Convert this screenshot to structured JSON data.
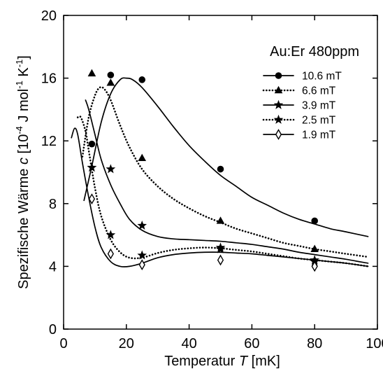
{
  "chart_data": {
    "type": "scatter",
    "title": "Au:Er 480ppm",
    "xlabel": {
      "main": "Temperatur ",
      "italic": "T",
      "unit": " [mK]"
    },
    "ylabel": {
      "main": "Spezifische Wärme  ",
      "italic": "c",
      "unit_pre": " [10",
      "exp1": "-4",
      "unit_mid": " J mol",
      "exp2": "-1",
      "unit_mid2": " K",
      "exp3": "-1",
      "unit_post": "]"
    },
    "xlim": [
      0,
      100
    ],
    "ylim": [
      0,
      20
    ],
    "x_ticks": [
      0,
      20,
      40,
      60,
      80,
      100
    ],
    "y_ticks": [
      0,
      4,
      8,
      12,
      16,
      20
    ],
    "grid": false,
    "legend_position": "top-right",
    "series": [
      {
        "name": "10.6 mT",
        "marker": "circle",
        "line": "solid",
        "points": [
          [
            9,
            11.8
          ],
          [
            15,
            16.2
          ],
          [
            25,
            15.9
          ],
          [
            50,
            10.2
          ],
          [
            80,
            6.9
          ]
        ],
        "curve": [
          [
            6.5,
            8.2
          ],
          [
            9,
            10.4
          ],
          [
            12,
            13.2
          ],
          [
            15,
            15.0
          ],
          [
            18,
            15.9
          ],
          [
            20,
            16.0
          ],
          [
            22,
            15.9
          ],
          [
            25,
            15.4
          ],
          [
            30,
            14.2
          ],
          [
            35,
            12.9
          ],
          [
            40,
            11.7
          ],
          [
            45,
            10.7
          ],
          [
            50,
            9.8
          ],
          [
            55,
            9.1
          ],
          [
            60,
            8.4
          ],
          [
            65,
            7.9
          ],
          [
            70,
            7.4
          ],
          [
            75,
            7.0
          ],
          [
            80,
            6.7
          ],
          [
            85,
            6.4
          ],
          [
            90,
            6.2
          ],
          [
            97,
            5.9
          ]
        ]
      },
      {
        "name": "6.6 mT",
        "marker": "triangle",
        "line": "dotted",
        "points": [
          [
            9,
            16.3
          ],
          [
            15,
            15.7
          ],
          [
            25,
            10.9
          ],
          [
            50,
            6.9
          ],
          [
            80,
            5.1
          ]
        ],
        "curve": [
          [
            6,
            11.0
          ],
          [
            8,
            13.5
          ],
          [
            10,
            14.9
          ],
          [
            11.5,
            15.4
          ],
          [
            13,
            15.3
          ],
          [
            15,
            14.6
          ],
          [
            18,
            13.0
          ],
          [
            21,
            11.6
          ],
          [
            25,
            10.2
          ],
          [
            30,
            9.1
          ],
          [
            35,
            8.3
          ],
          [
            40,
            7.7
          ],
          [
            45,
            7.2
          ],
          [
            50,
            6.8
          ],
          [
            55,
            6.4
          ],
          [
            60,
            6.1
          ],
          [
            65,
            5.8
          ],
          [
            70,
            5.5
          ],
          [
            75,
            5.3
          ],
          [
            80,
            5.1
          ],
          [
            85,
            4.95
          ],
          [
            90,
            4.8
          ],
          [
            97,
            4.6
          ]
        ]
      },
      {
        "name": "3.9 mT",
        "marker": "star",
        "line": "solid",
        "points": [
          [
            9,
            10.3
          ],
          [
            15,
            10.2
          ],
          [
            25,
            6.6
          ],
          [
            50,
            5.2
          ],
          [
            80,
            4.4
          ]
        ],
        "curve": [
          [
            7,
            14.6
          ],
          [
            8,
            14.0
          ],
          [
            10,
            12.4
          ],
          [
            12,
            10.8
          ],
          [
            15,
            9.2
          ],
          [
            18,
            8.0
          ],
          [
            21,
            7.0
          ],
          [
            25,
            6.3
          ],
          [
            30,
            5.9
          ],
          [
            35,
            5.75
          ],
          [
            40,
            5.7
          ],
          [
            45,
            5.65
          ],
          [
            50,
            5.6
          ],
          [
            55,
            5.5
          ],
          [
            60,
            5.4
          ],
          [
            65,
            5.25
          ],
          [
            70,
            5.1
          ],
          [
            75,
            4.9
          ],
          [
            80,
            4.75
          ],
          [
            85,
            4.6
          ],
          [
            90,
            4.45
          ],
          [
            97,
            4.2
          ]
        ]
      },
      {
        "name": "2.5 mT",
        "marker": "star",
        "line": "dotted",
        "points": [
          [
            9,
            10.3
          ],
          [
            15,
            6.0
          ],
          [
            25,
            4.7
          ],
          [
            50,
            5.1
          ],
          [
            80,
            4.3
          ]
        ],
        "curve": [
          [
            4.5,
            13.5
          ],
          [
            5.5,
            13.5
          ],
          [
            7,
            12.6
          ],
          [
            8,
            11.4
          ],
          [
            10,
            9.0
          ],
          [
            12,
            7.2
          ],
          [
            15,
            5.7
          ],
          [
            18,
            4.9
          ],
          [
            21,
            4.55
          ],
          [
            25,
            4.55
          ],
          [
            30,
            4.85
          ],
          [
            35,
            5.05
          ],
          [
            40,
            5.15
          ],
          [
            45,
            5.2
          ],
          [
            50,
            5.15
          ],
          [
            55,
            5.05
          ],
          [
            60,
            4.95
          ],
          [
            65,
            4.8
          ],
          [
            70,
            4.65
          ],
          [
            75,
            4.5
          ],
          [
            80,
            4.4
          ],
          [
            85,
            4.3
          ],
          [
            90,
            4.2
          ],
          [
            97,
            4.0
          ]
        ]
      },
      {
        "name": "1.9 mT",
        "marker": "diamond",
        "line": "solid",
        "points": [
          [
            9,
            8.3
          ],
          [
            15,
            4.8
          ],
          [
            25,
            4.1
          ],
          [
            50,
            4.4
          ],
          [
            80,
            4.0
          ]
        ],
        "curve": [
          [
            2.5,
            12.2
          ],
          [
            3.5,
            12.8
          ],
          [
            4.5,
            12.4
          ],
          [
            6,
            10.6
          ],
          [
            8,
            8.4
          ],
          [
            10,
            6.5
          ],
          [
            12,
            5.2
          ],
          [
            15,
            4.3
          ],
          [
            18,
            4.0
          ],
          [
            21,
            4.0
          ],
          [
            25,
            4.2
          ],
          [
            30,
            4.55
          ],
          [
            35,
            4.75
          ],
          [
            40,
            4.85
          ],
          [
            45,
            4.9
          ],
          [
            50,
            4.9
          ],
          [
            55,
            4.85
          ],
          [
            60,
            4.8
          ],
          [
            65,
            4.7
          ],
          [
            70,
            4.6
          ],
          [
            75,
            4.5
          ],
          [
            80,
            4.4
          ],
          [
            85,
            4.3
          ],
          [
            90,
            4.2
          ],
          [
            97,
            4.0
          ]
        ]
      }
    ]
  }
}
